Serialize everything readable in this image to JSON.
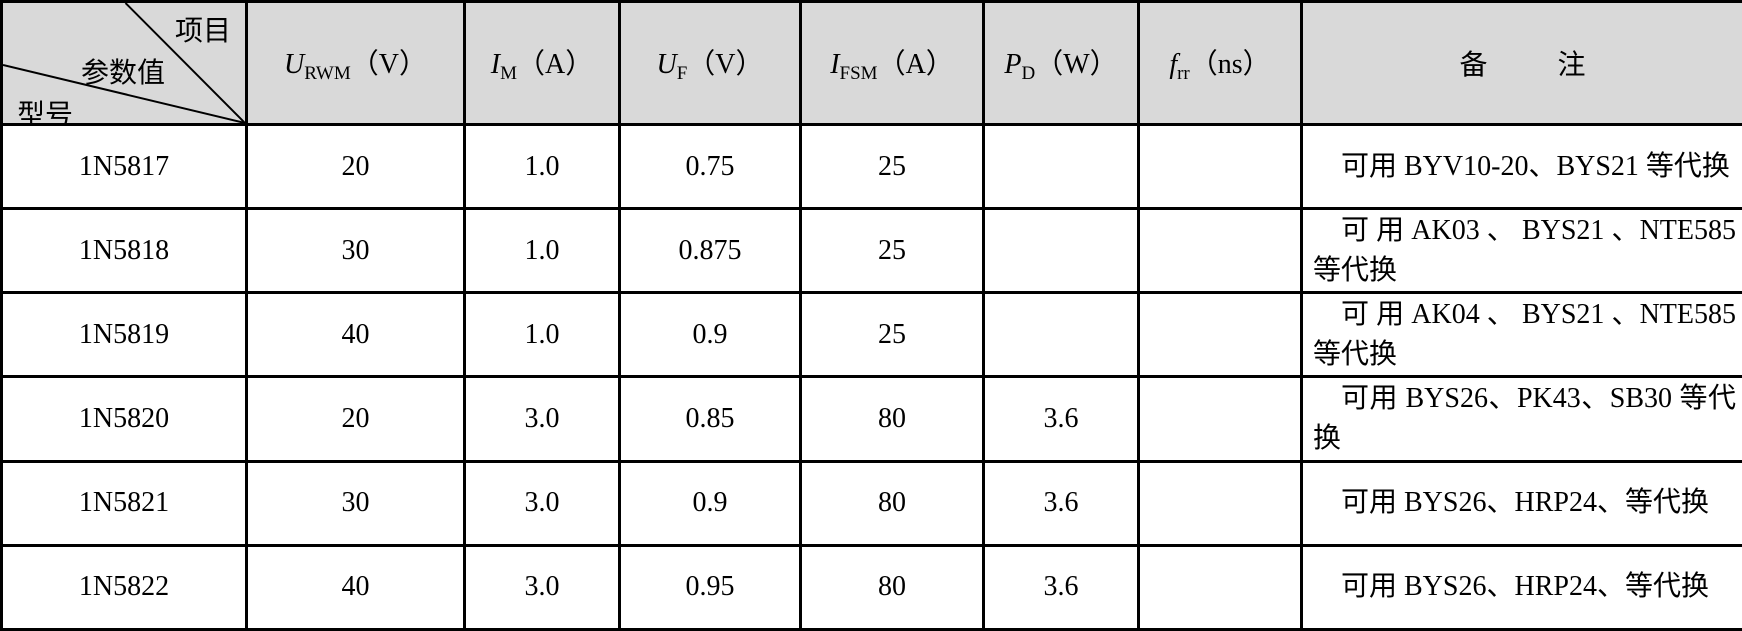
{
  "header": {
    "corner": {
      "top_right": "项目",
      "middle": "参数值",
      "bottom_left": "型号"
    },
    "cols": [
      {
        "sym": "U",
        "sub": "RWM",
        "unit": "（V）"
      },
      {
        "sym": "I",
        "sub": "M",
        "unit": "（A）"
      },
      {
        "sym": "U",
        "sub": "F",
        "unit": "（V）"
      },
      {
        "sym": "I",
        "sub": "FSM",
        "unit": "（A）"
      },
      {
        "sym": "P",
        "sub": "D",
        "unit": "（W）"
      },
      {
        "sym": "f",
        "sub": "rr",
        "unit": "（ns）"
      }
    ],
    "notes_a": "备",
    "notes_b": "注"
  },
  "rows": [
    {
      "model": "1N5817",
      "urwm": "20",
      "im": "1.0",
      "uf": "0.75",
      "ifsm": "25",
      "pd": "",
      "frr": "",
      "note": "可用 BYV10-20、BYS21 等代换"
    },
    {
      "model": "1N5818",
      "urwm": "30",
      "im": "1.0",
      "uf": "0.875",
      "ifsm": "25",
      "pd": "",
      "frr": "",
      "note": "可 用 AK03 、 BYS21 、NTE585 等代换"
    },
    {
      "model": "1N5819",
      "urwm": "40",
      "im": "1.0",
      "uf": "0.9",
      "ifsm": "25",
      "pd": "",
      "frr": "",
      "note": "可 用 AK04 、 BYS21 、NTE585 等代换"
    },
    {
      "model": "1N5820",
      "urwm": "20",
      "im": "3.0",
      "uf": "0.85",
      "ifsm": "80",
      "pd": "3.6",
      "frr": "",
      "note": "可用 BYS26、PK43、SB30 等代换"
    },
    {
      "model": "1N5821",
      "urwm": "30",
      "im": "3.0",
      "uf": "0.9",
      "ifsm": "80",
      "pd": "3.6",
      "frr": "",
      "note": "可用 BYS26、HRP24、等代换"
    },
    {
      "model": "1N5822",
      "urwm": "40",
      "im": "3.0",
      "uf": "0.95",
      "ifsm": "80",
      "pd": "3.6",
      "frr": "",
      "note": "可用 BYS26、HRP24、等代换"
    }
  ]
}
